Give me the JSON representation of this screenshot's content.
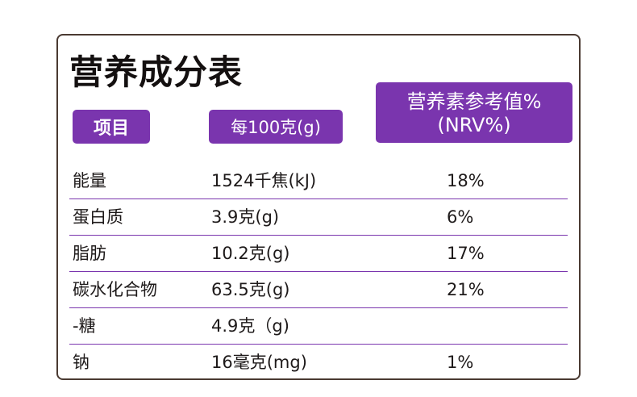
{
  "table": {
    "title": "营养成分表",
    "headers": {
      "item": "项目",
      "per_100g": "每100克(g)",
      "nrv": "营养素参考值%",
      "nrv_sub": "(NRV%)"
    },
    "rows": [
      {
        "name": "能量",
        "amount": "1524千焦(kJ)",
        "nrv": "18%"
      },
      {
        "name": "蛋白质",
        "amount": "3.9克(g)",
        "nrv": "6%"
      },
      {
        "name": "脂肪",
        "amount": "10.2克(g)",
        "nrv": "17%"
      },
      {
        "name": "碳水化合物",
        "amount": "63.5克(g)",
        "nrv": "21%"
      },
      {
        "name": "-糖",
        "amount": "4.9克（g)",
        "nrv": ""
      },
      {
        "name": "钠",
        "amount": "16毫克(mg)",
        "nrv": "1%"
      }
    ]
  },
  "colors": {
    "accent": "#7a35ae",
    "border": "#4a3a32",
    "text": "#1e1a1a"
  }
}
